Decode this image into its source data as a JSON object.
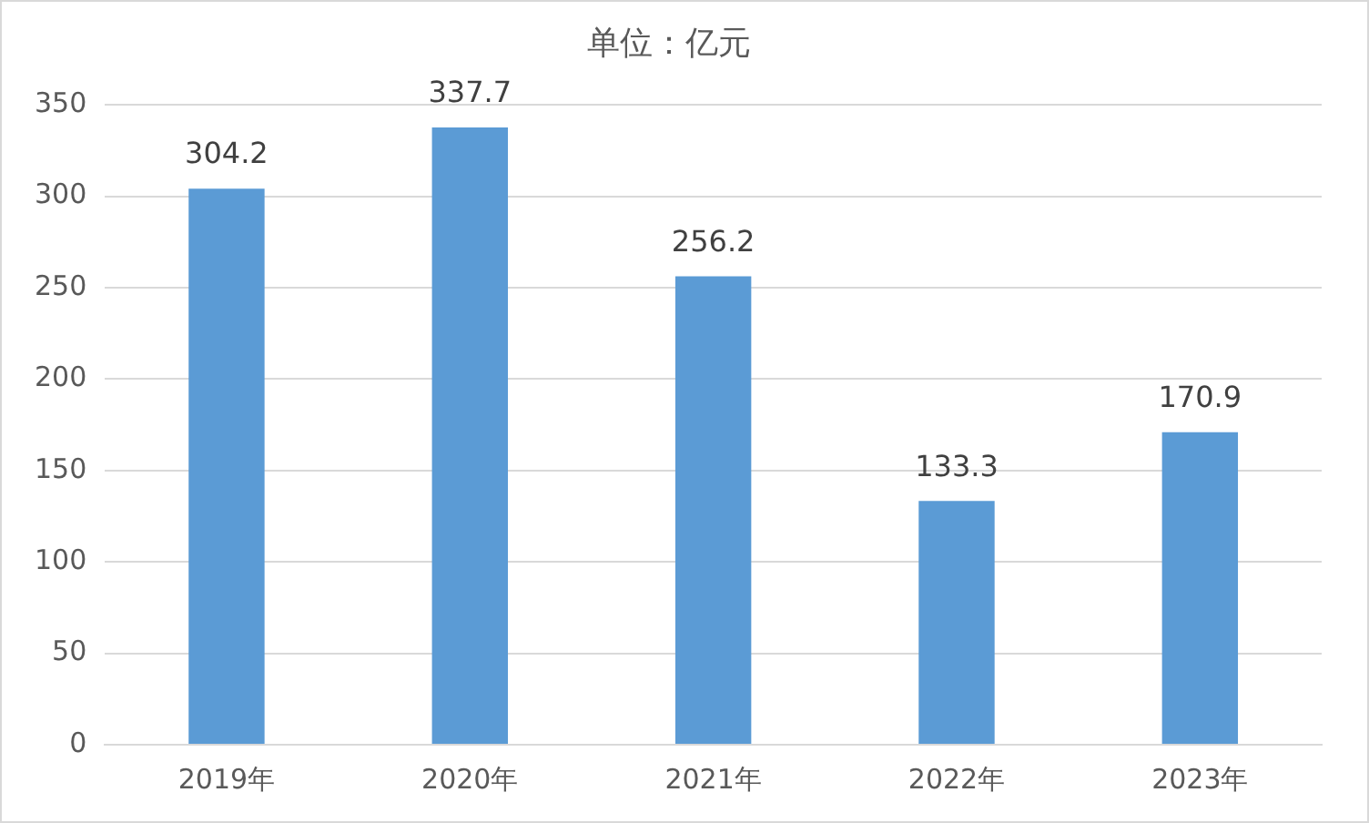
{
  "chart_data": {
    "type": "bar",
    "title": "单位：亿元",
    "categories": [
      "2019年",
      "2020年",
      "2021年",
      "2022年",
      "2023年"
    ],
    "values": [
      304.2,
      337.7,
      256.2,
      133.3,
      170.9
    ],
    "color": "#5b9bd5",
    "ylim": [
      0,
      350
    ],
    "yticks": [
      0,
      50,
      100,
      150,
      200,
      250,
      300,
      350
    ],
    "grid": "y",
    "data_labels": true
  }
}
